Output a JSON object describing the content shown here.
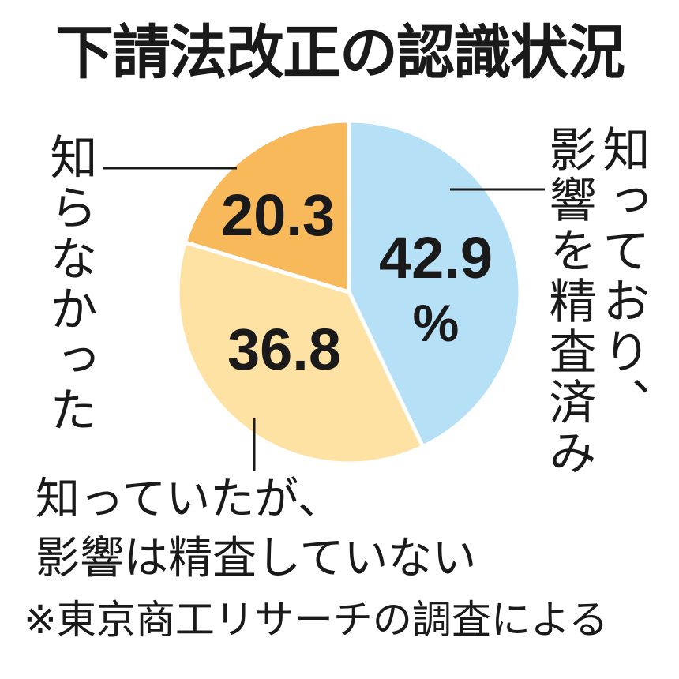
{
  "chart_data": {
    "type": "pie",
    "title": "下請法改正の認識状況",
    "unit": "%",
    "slices": [
      {
        "label": "知っており、影響を精査済み",
        "label_lines": [
          "知っており、",
          "影響を精査済み"
        ],
        "value": 42.9,
        "value_text": "42.9",
        "color": "#b5e0f6"
      },
      {
        "label": "知っていたが、影響は精査していない",
        "label_lines": [
          "知っていたが、",
          "影響は精査していない"
        ],
        "value": 36.8,
        "value_text": "36.8",
        "color": "#fde2a4"
      },
      {
        "label": "知らなかった",
        "label_lines": [
          "知らなかった"
        ],
        "value": 20.3,
        "value_text": "20.3",
        "color": "#f8b95b"
      }
    ],
    "start": "top, clockwise",
    "note": "※東京商工リサーチの調査による"
  }
}
